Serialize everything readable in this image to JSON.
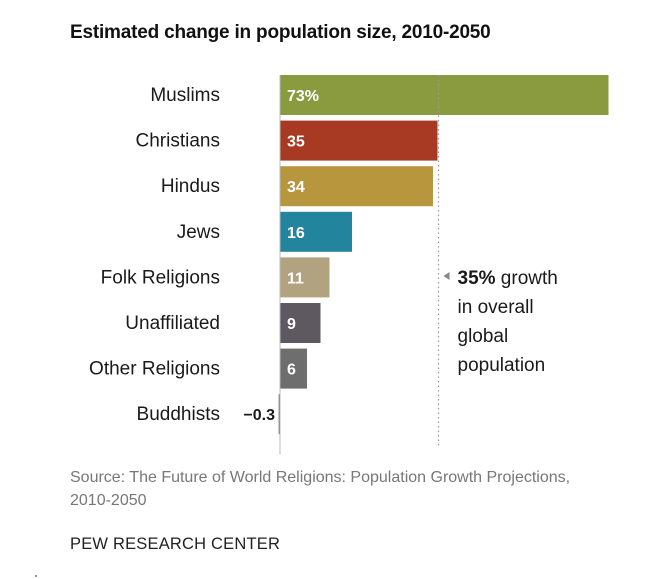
{
  "chart_data": {
    "type": "bar",
    "orientation": "horizontal",
    "title": "Estimated change in population size, 2010-2050",
    "xlabel": "",
    "ylabel": "",
    "unit": "percent",
    "categories": [
      "Muslims",
      "Christians",
      "Hindus",
      "Jews",
      "Folk Religions",
      "Unaffiliated",
      "Other Religions",
      "Buddhists"
    ],
    "values": [
      73,
      35,
      34,
      16,
      11,
      9,
      6,
      -0.3
    ],
    "value_labels": [
      "73%",
      "35",
      "34",
      "16",
      "11",
      "9",
      "6",
      "−0.3"
    ],
    "colors": [
      "#8a9a3f",
      "#a83a24",
      "#b8963e",
      "#23849d",
      "#b2a380",
      "#5e5860",
      "#6e6e6e",
      "#6e6e6e"
    ],
    "reference_line": {
      "value": 35,
      "label_lines": [
        "35% growth",
        "in overall",
        "global",
        "population"
      ],
      "label_bold_part": "35%"
    },
    "grid": false
  },
  "source_text": "Source: The Future of World Religions: Population Growth Projections, 2010-2050",
  "brand_text": "PEW RESEARCH CENTER"
}
